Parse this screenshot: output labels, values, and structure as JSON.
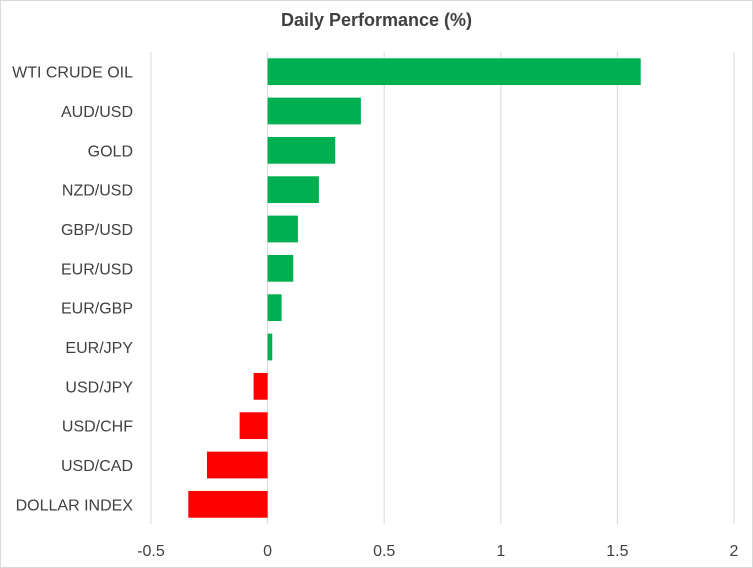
{
  "chart_data": {
    "type": "bar",
    "orientation": "horizontal",
    "title": "Daily Performance (%)",
    "xlabel": "",
    "ylabel": "",
    "categories": [
      "WTI CRUDE OIL",
      "AUD/USD",
      "GOLD",
      "NZD/USD",
      "GBP/USD",
      "EUR/USD",
      "EUR/GBP",
      "EUR/JPY",
      "USD/JPY",
      "USD/CHF",
      "USD/CAD",
      "DOLLAR INDEX"
    ],
    "values": [
      1.6,
      0.4,
      0.29,
      0.22,
      0.13,
      0.11,
      0.06,
      0.02,
      -0.06,
      -0.12,
      -0.26,
      -0.34
    ],
    "xlim": [
      -0.5,
      2
    ],
    "xticks": [
      -0.5,
      0,
      0.5,
      1,
      1.5,
      2
    ],
    "xtick_labels": [
      "-0.5",
      "0",
      "0.5",
      "1",
      "1.5",
      "2"
    ],
    "grid": "vertical",
    "legend": "none",
    "colors": {
      "positive": "#00b050",
      "negative": "#ff0000",
      "grid": "#d9d9d9",
      "text": "#404040"
    }
  }
}
